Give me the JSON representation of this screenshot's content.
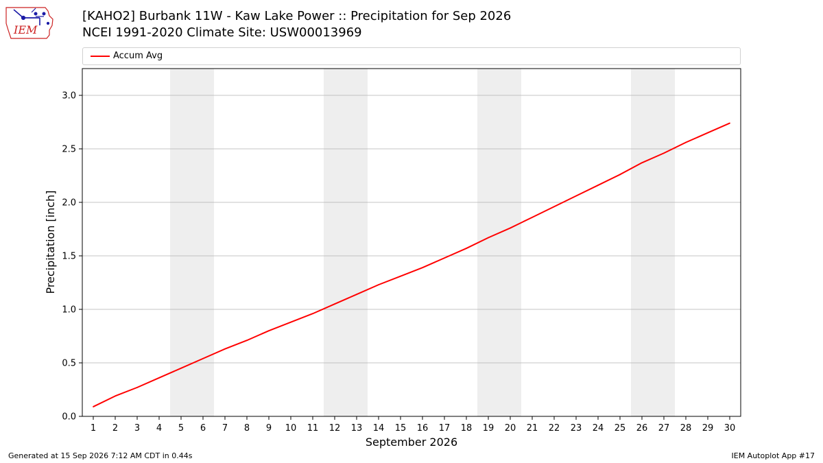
{
  "header": {
    "title_line1": "[KAHO2] Burbank 11W - Kaw Lake Power :: Precipitation for Sep 2026",
    "title_line2": "NCEI 1991-2020 Climate Site: USW00013969",
    "logo_text": "IEM"
  },
  "footer": {
    "generated": "Generated at 15 Sep 2026 7:12 AM CDT in 0.44s",
    "app": "IEM Autoplot App #17"
  },
  "colors": {
    "series": "#ff0000",
    "weekend_band": "#eeeeee",
    "grid": "#b0b0b0",
    "logo_red": "#cc2222",
    "logo_blue": "#1a1aa6"
  },
  "chart_data": {
    "type": "line",
    "xlabel": "September 2026",
    "ylabel": "Precipitation [inch]",
    "xlim": [
      0.5,
      30.5
    ],
    "ylim": [
      0,
      3.25
    ],
    "x_ticks": [
      1,
      2,
      3,
      4,
      5,
      6,
      7,
      8,
      9,
      10,
      11,
      12,
      13,
      14,
      15,
      16,
      17,
      18,
      19,
      20,
      21,
      22,
      23,
      24,
      25,
      26,
      27,
      28,
      29,
      30
    ],
    "y_ticks": [
      0.0,
      0.5,
      1.0,
      1.5,
      2.0,
      2.5,
      3.0
    ],
    "y_tick_labels": [
      "0.0",
      "0.5",
      "1.0",
      "1.5",
      "2.0",
      "2.5",
      "3.0"
    ],
    "grid": "horizontal",
    "legend": "top",
    "weekend_bands": [
      [
        5,
        6
      ],
      [
        12,
        13
      ],
      [
        19,
        20
      ],
      [
        26,
        27
      ]
    ],
    "series": [
      {
        "name": "Accum Avg",
        "x": [
          1,
          2,
          3,
          4,
          5,
          6,
          7,
          8,
          9,
          10,
          11,
          12,
          13,
          14,
          15,
          16,
          17,
          18,
          19,
          20,
          21,
          22,
          23,
          24,
          25,
          26,
          27,
          28,
          29,
          30
        ],
        "values": [
          0.09,
          0.19,
          0.27,
          0.36,
          0.45,
          0.54,
          0.63,
          0.71,
          0.8,
          0.88,
          0.96,
          1.05,
          1.14,
          1.23,
          1.31,
          1.39,
          1.48,
          1.57,
          1.67,
          1.76,
          1.86,
          1.96,
          2.06,
          2.16,
          2.26,
          2.37,
          2.46,
          2.56,
          2.65,
          2.74
        ]
      }
    ]
  }
}
